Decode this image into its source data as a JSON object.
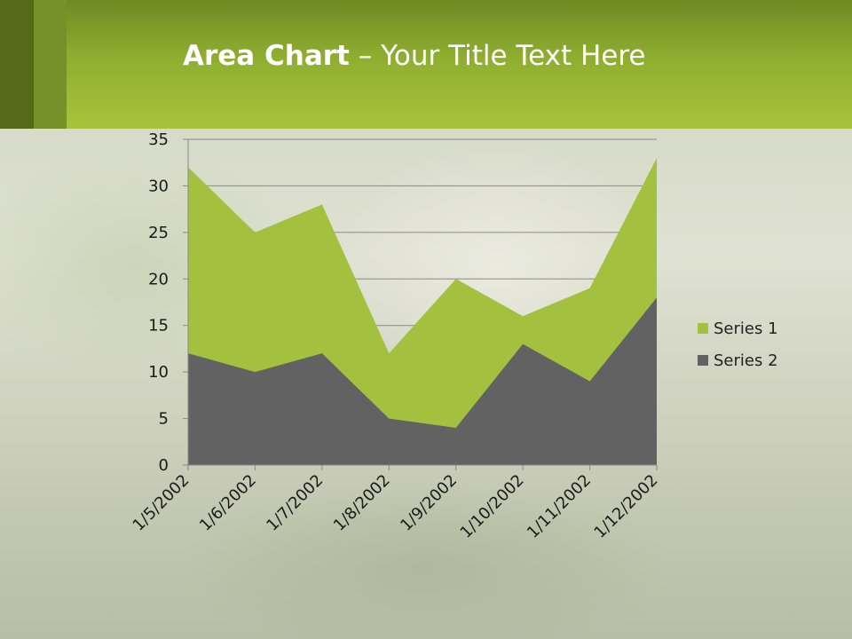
{
  "slide": {
    "title_bold": "Area Chart",
    "title_rest": " – Your Title Text Here"
  },
  "colors": {
    "header": "#a8c43c",
    "series1": "#a3c13f",
    "series2": "#626262"
  },
  "chart_data": {
    "type": "area",
    "categories": [
      "1/5/2002",
      "1/6/2002",
      "1/7/2002",
      "1/8/2002",
      "1/9/2002",
      "1/10/2002",
      "1/11/2002",
      "1/12/2002"
    ],
    "series": [
      {
        "name": "Series 1",
        "values": [
          32,
          25,
          28,
          12,
          20,
          16,
          19,
          33
        ]
      },
      {
        "name": "Series 2",
        "values": [
          12,
          10,
          12,
          5,
          4,
          13,
          9,
          18
        ]
      }
    ],
    "ylim": [
      0,
      35
    ],
    "yticks": [
      0,
      5,
      10,
      15,
      20,
      25,
      30,
      35
    ],
    "grid": true,
    "legend": "right"
  }
}
